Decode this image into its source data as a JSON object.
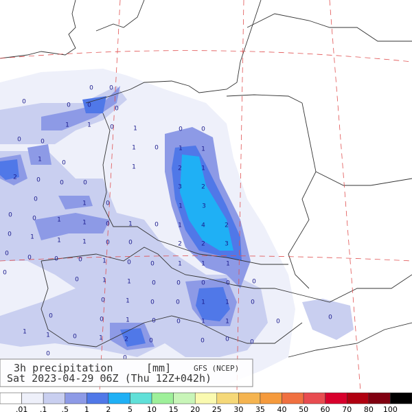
{
  "title": {
    "product": "3h precipitation",
    "units": "[mm]",
    "model": "GFS (NCEP)",
    "valid": "Sat 2023-04-29 06Z (Thu 12Z+042h)"
  },
  "legend": {
    "colors": [
      "#ffffff",
      "#eef0fa",
      "#c9cff0",
      "#8d9ae6",
      "#5078e8",
      "#1fb0f5",
      "#60e0d8",
      "#9ef09a",
      "#c8f5b8",
      "#fafab0",
      "#f5d878",
      "#f5b450",
      "#f59a3c",
      "#f07040",
      "#e84c50",
      "#d8002c",
      "#b00010",
      "#800010",
      "#000000"
    ],
    "labels": [
      ".01",
      ".1",
      ".5",
      "1",
      "2",
      "5",
      "10",
      "15",
      "20",
      "25",
      "30",
      "35",
      "40",
      "50",
      "60",
      "70",
      "80",
      "100"
    ]
  },
  "map_labels": [
    "0",
    "0",
    "0",
    "0",
    "0",
    "0",
    "1",
    "1",
    "0",
    "1",
    "0",
    "0",
    "0",
    "0",
    "1",
    "0",
    "1",
    "1",
    "1",
    "0",
    "1",
    "2",
    "1",
    "2",
    "0",
    "0",
    "0",
    "3",
    "2",
    "0",
    "1",
    "0",
    "1",
    "3",
    "0",
    "0",
    "1",
    "1",
    "0",
    "1",
    "0",
    "1",
    "4",
    "2",
    "1",
    "0",
    "1",
    "1",
    "0",
    "0",
    "2",
    "2",
    "3",
    "0",
    "0",
    "0",
    "0",
    "1",
    "0",
    "0",
    "1",
    "1",
    "1",
    "0",
    "0",
    "1",
    "1",
    "0",
    "0",
    "0",
    "0",
    "0",
    "0",
    "1",
    "0",
    "0",
    "1",
    "1",
    "0",
    "0",
    "0",
    "1",
    "0",
    "0",
    "1",
    "1",
    "0",
    "0",
    "1",
    "1",
    "0",
    "1",
    "2",
    "0",
    "0",
    "0",
    "0",
    "0",
    "0"
  ]
}
